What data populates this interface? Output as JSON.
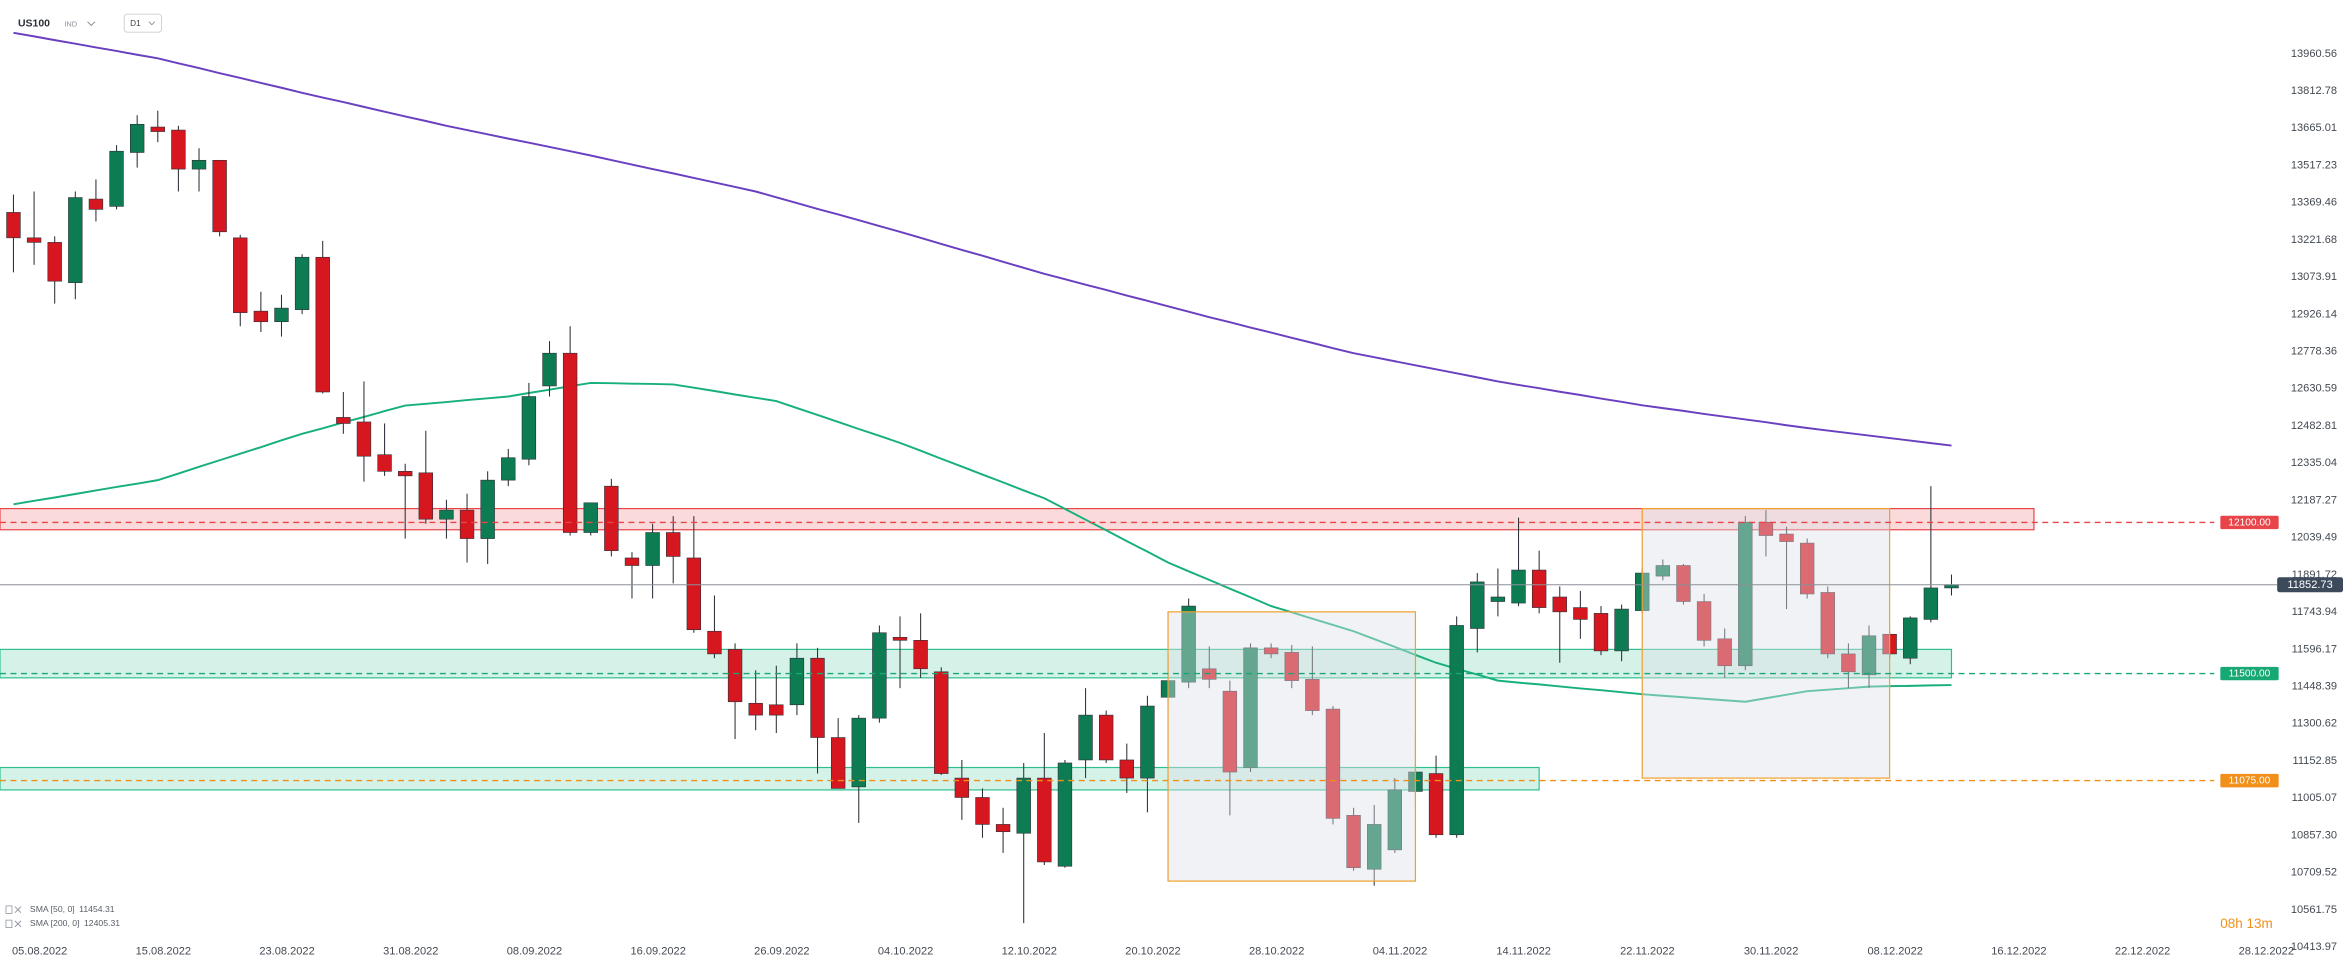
{
  "chart_data": {
    "type": "candlestick",
    "symbol": "US100",
    "market": "IND",
    "timeframe": "D1",
    "countdown": "08h 13m",
    "categories": [
      "05.08.2022",
      null,
      null,
      null,
      null,
      null,
      "15.08.2022",
      null,
      null,
      null,
      null,
      null,
      "23.08.2022",
      null,
      null,
      null,
      null,
      null,
      "31.08.2022",
      null,
      null,
      null,
      null,
      null,
      "08.09.2022",
      null,
      null,
      null,
      null,
      null,
      "16.09.2022",
      null,
      null,
      null,
      null,
      null,
      "26.09.2022",
      null,
      null,
      null,
      null,
      null,
      "04.10.2022",
      null,
      null,
      null,
      null,
      null,
      "12.10.2022",
      null,
      null,
      null,
      null,
      null,
      "20.10.2022",
      null,
      null,
      null,
      null,
      null,
      "28.10.2022",
      null,
      null,
      null,
      null,
      null,
      "04.11.2022",
      null,
      null,
      null,
      null,
      null,
      "14.11.2022",
      null,
      null,
      null,
      null,
      null,
      "22.11.2022",
      null,
      null,
      null,
      null,
      null,
      "30.11.2022",
      null,
      null,
      null,
      null,
      null,
      "08.12.2022",
      null,
      null,
      null,
      null,
      null,
      "16.12.2022",
      null,
      null,
      null,
      null,
      null,
      "22.12.2022",
      null,
      null,
      null,
      null,
      null,
      "28.12.2022"
    ],
    "open": [
      13331,
      13230,
      13212,
      13052,
      13384,
      13355,
      13569,
      13670,
      13658,
      13503,
      13538,
      13230,
      12939,
      12897,
      12945,
      13153,
      12517,
      12499,
      12369,
      12303,
      12297,
      12113,
      12149,
      12036,
      12268,
      12351,
      12642,
      12772,
      12060,
      12244,
      11959,
      11929,
      12060,
      11959,
      11668,
      11596,
      11382,
      11376,
      11376,
      11561,
      11246,
      11050,
      11323,
      11644,
      11632,
      11507,
      11085,
      11008,
      10901,
      10866,
      11085,
      10735,
      11157,
      11335,
      11157,
      11085,
      11406,
      11466,
      11519,
      11430,
      11127,
      11602,
      11584,
      11477,
      11359,
      10937,
      10723,
      10800,
      11032,
      11103,
      10860,
      11679,
      11786,
      11780,
      11911,
      11804,
      11762,
      11739,
      11590,
      11750,
      11887,
      11929,
      11786,
      11638,
      11531,
      12101,
      12054,
      12018,
      11822,
      11578,
      11495,
      11656,
      11561,
      11715,
      11840,
      null,
      null,
      null,
      null,
      null,
      null,
      null,
      null,
      null,
      null,
      null,
      null,
      null,
      null
    ],
    "high": [
      13402,
      13414,
      13236,
      13414,
      13462,
      13598,
      13717,
      13735,
      13675,
      13586,
      13538,
      13242,
      13016,
      13004,
      13165,
      13218,
      12618,
      12660,
      12493,
      12333,
      12464,
      12190,
      12214,
      12303,
      12392,
      12654,
      12820,
      12879,
      12178,
      12273,
      11982,
      12095,
      12125,
      12125,
      11810,
      11620,
      11513,
      11531,
      11620,
      11602,
      11323,
      11335,
      11691,
      11727,
      11739,
      11525,
      11157,
      11044,
      10967,
      11145,
      11264,
      11157,
      11442,
      11353,
      11222,
      11412,
      11561,
      11798,
      11608,
      11472,
      11620,
      11620,
      11614,
      11608,
      11371,
      10967,
      10978,
      11085,
      11264,
      11174,
      11727,
      11899,
      11917,
      12119,
      11988,
      11846,
      11828,
      11768,
      11774,
      11917,
      11953,
      11935,
      11816,
      11679,
      12125,
      12149,
      12083,
      12036,
      11846,
      11620,
      11691,
      11668,
      11727,
      12244,
      11893,
      null,
      null,
      null,
      null,
      null,
      null,
      null,
      null,
      null,
      null,
      null,
      null,
      null,
      null
    ],
    "low": [
      13093,
      13123,
      12969,
      12986,
      13295,
      13343,
      13509,
      13610,
      13414,
      13414,
      13236,
      12879,
      12856,
      12838,
      12927,
      12612,
      12452,
      12262,
      12285,
      12036,
      12095,
      12036,
      11941,
      11935,
      12244,
      12327,
      12600,
      12048,
      12048,
      11965,
      11798,
      11798,
      11858,
      11662,
      11561,
      11240,
      11275,
      11264,
      11335,
      11103,
      11044,
      10907,
      11305,
      11442,
      11483,
      11097,
      10919,
      10848,
      10788,
      10509,
      10740,
      10729,
      11085,
      11145,
      11026,
      10949,
      11365,
      11442,
      11442,
      10937,
      11109,
      11561,
      11442,
      11335,
      10901,
      10717,
      10658,
      10788,
      10967,
      10848,
      10848,
      11584,
      11727,
      11768,
      11739,
      11543,
      11638,
      11573,
      11549,
      11739,
      11870,
      11774,
      11608,
      11483,
      11513,
      11965,
      11756,
      11798,
      11561,
      11442,
      11442,
      11561,
      11537,
      11703,
      11810,
      null,
      null,
      null,
      null,
      null,
      null,
      null,
      null,
      null,
      null,
      null,
      null,
      null,
      null
    ],
    "close": [
      13230,
      13212,
      13058,
      13390,
      13343,
      13574,
      13681,
      13652,
      13503,
      13538,
      13254,
      12933,
      12897,
      12951,
      13153,
      12618,
      12493,
      12363,
      12303,
      12285,
      12113,
      12149,
      12036,
      12268,
      12357,
      12600,
      12772,
      12060,
      12178,
      11988,
      11929,
      12060,
      11965,
      11674,
      11578,
      11388,
      11335,
      11335,
      11561,
      11246,
      11044,
      11323,
      11662,
      11632,
      11519,
      11103,
      11008,
      10901,
      10872,
      11085,
      10752,
      11145,
      11335,
      11157,
      11085,
      11371,
      11472,
      11768,
      11477,
      11109,
      11602,
      11578,
      11472,
      11353,
      10925,
      10729,
      10901,
      11038,
      11109,
      10860,
      11691,
      11864,
      11804,
      11911,
      11762,
      11745,
      11715,
      11590,
      11756,
      11899,
      11929,
      11786,
      11632,
      11531,
      12101,
      12048,
      12024,
      11816,
      11578,
      11507,
      11650,
      11578,
      11721,
      11840,
      11852.73,
      null,
      null,
      null,
      null,
      null,
      null,
      null,
      null,
      null,
      null,
      null,
      null,
      null,
      null
    ],
    "up_color": "#0e7c52",
    "down_color": "#d7171f",
    "series": [
      {
        "name": "SMA [50, 0]",
        "color": "#17b07a",
        "values": [
          12172,
          12186,
          12199,
          12213,
          12227,
          12241,
          12254,
          12268,
          12294,
          12321,
          12347,
          12373,
          12399,
          12426,
          12452,
          12474,
          12497,
          12519,
          12542,
          12564,
          12571,
          12578,
          12586,
          12593,
          12600,
          12614,
          12627,
          12641,
          12654,
          12653,
          12651,
          12650,
          12648,
          12635,
          12622,
          12608,
          12595,
          12582,
          12554,
          12527,
          12499,
          12471,
          12444,
          12416,
          12385,
          12353,
          12322,
          12290,
          12259,
          12227,
          12196,
          12154,
          12111,
          12069,
          12026,
          11984,
          11941,
          11906,
          11872,
          11837,
          11803,
          11768,
          11743,
          11718,
          11693,
          11668,
          11637,
          11606,
          11574,
          11543,
          11519,
          11496,
          11472,
          11464,
          11457,
          11449,
          11441,
          11434,
          11426,
          11418,
          11412,
          11406,
          11400,
          11394,
          11388,
          11402,
          11416,
          11430,
          11436,
          11442,
          11448,
          11450,
          11451,
          11453,
          11454.31,
          null,
          null,
          null,
          null,
          null,
          null,
          null,
          null,
          null,
          null,
          null,
          null,
          null,
          null
        ]
      },
      {
        "name": "SMA [200, 0]",
        "color": "#6a3fc0",
        "values": [
          14044,
          14030,
          14015,
          14001,
          13986,
          13972,
          13957,
          13943,
          13923,
          13904,
          13884,
          13865,
          13845,
          13826,
          13806,
          13787,
          13769,
          13750,
          13731,
          13712,
          13694,
          13675,
          13658,
          13641,
          13624,
          13608,
          13591,
          13574,
          13557,
          13539,
          13521,
          13503,
          13486,
          13468,
          13450,
          13432,
          13414,
          13391,
          13368,
          13345,
          13323,
          13300,
          13277,
          13254,
          13230,
          13206,
          13182,
          13159,
          13135,
          13111,
          13087,
          13066,
          13044,
          13023,
          13001,
          12980,
          12958,
          12937,
          12915,
          12895,
          12874,
          12854,
          12833,
          12813,
          12792,
          12772,
          12756,
          12740,
          12724,
          12708,
          12692,
          12676,
          12660,
          12646,
          12633,
          12619,
          12606,
          12592,
          12579,
          12565,
          12554,
          12543,
          12531,
          12520,
          12509,
          12498,
          12486,
          12475,
          12465,
          12455,
          12445,
          12435,
          12425,
          12415,
          12405.31,
          null,
          null,
          null,
          null,
          null,
          null,
          null,
          null,
          null,
          null,
          null,
          null,
          null,
          null
        ]
      }
    ],
    "ylim": [
      10342.8,
      14174.4
    ],
    "yticks": [
      13960.56,
      13812.78,
      13665.01,
      13517.23,
      13369.46,
      13221.68,
      13073.91,
      12926.14,
      12778.36,
      12630.59,
      12482.81,
      12335.04,
      12187.27,
      12039.49,
      11891.72,
      11743.94,
      11596.17,
      11448.39,
      11300.62,
      11152.85,
      11005.07,
      {
        "value": 10857.3,
        "label": "10857.30"
      },
      10709.52,
      10561.75,
      10413.97
    ],
    "grid": false,
    "current_price": 11852.73,
    "zones": [
      {
        "range": [
          12071,
          12155
        ],
        "end": 98,
        "color": "#e8454a"
      },
      {
        "range": [
          11483,
          11596
        ],
        "end": 94,
        "color": "#2fbf8f"
      },
      {
        "range": [
          11038,
          11127
        ],
        "end": 74,
        "color": "#2fbf8f"
      }
    ],
    "boxes": [
      {
        "x": [
          56,
          68
        ],
        "range": [
          10676,
          11745
        ]
      },
      {
        "x": [
          79,
          91
        ],
        "range": [
          11085,
          12155
        ]
      }
    ],
    "levels": [
      {
        "value": 12100,
        "label": "12100.00",
        "color": "#e8454a"
      },
      {
        "value": 11500,
        "label": "11500.00",
        "color": "#17a874"
      },
      {
        "value": 11075,
        "label": "11075.00",
        "color": "#f0901a"
      }
    ]
  }
}
